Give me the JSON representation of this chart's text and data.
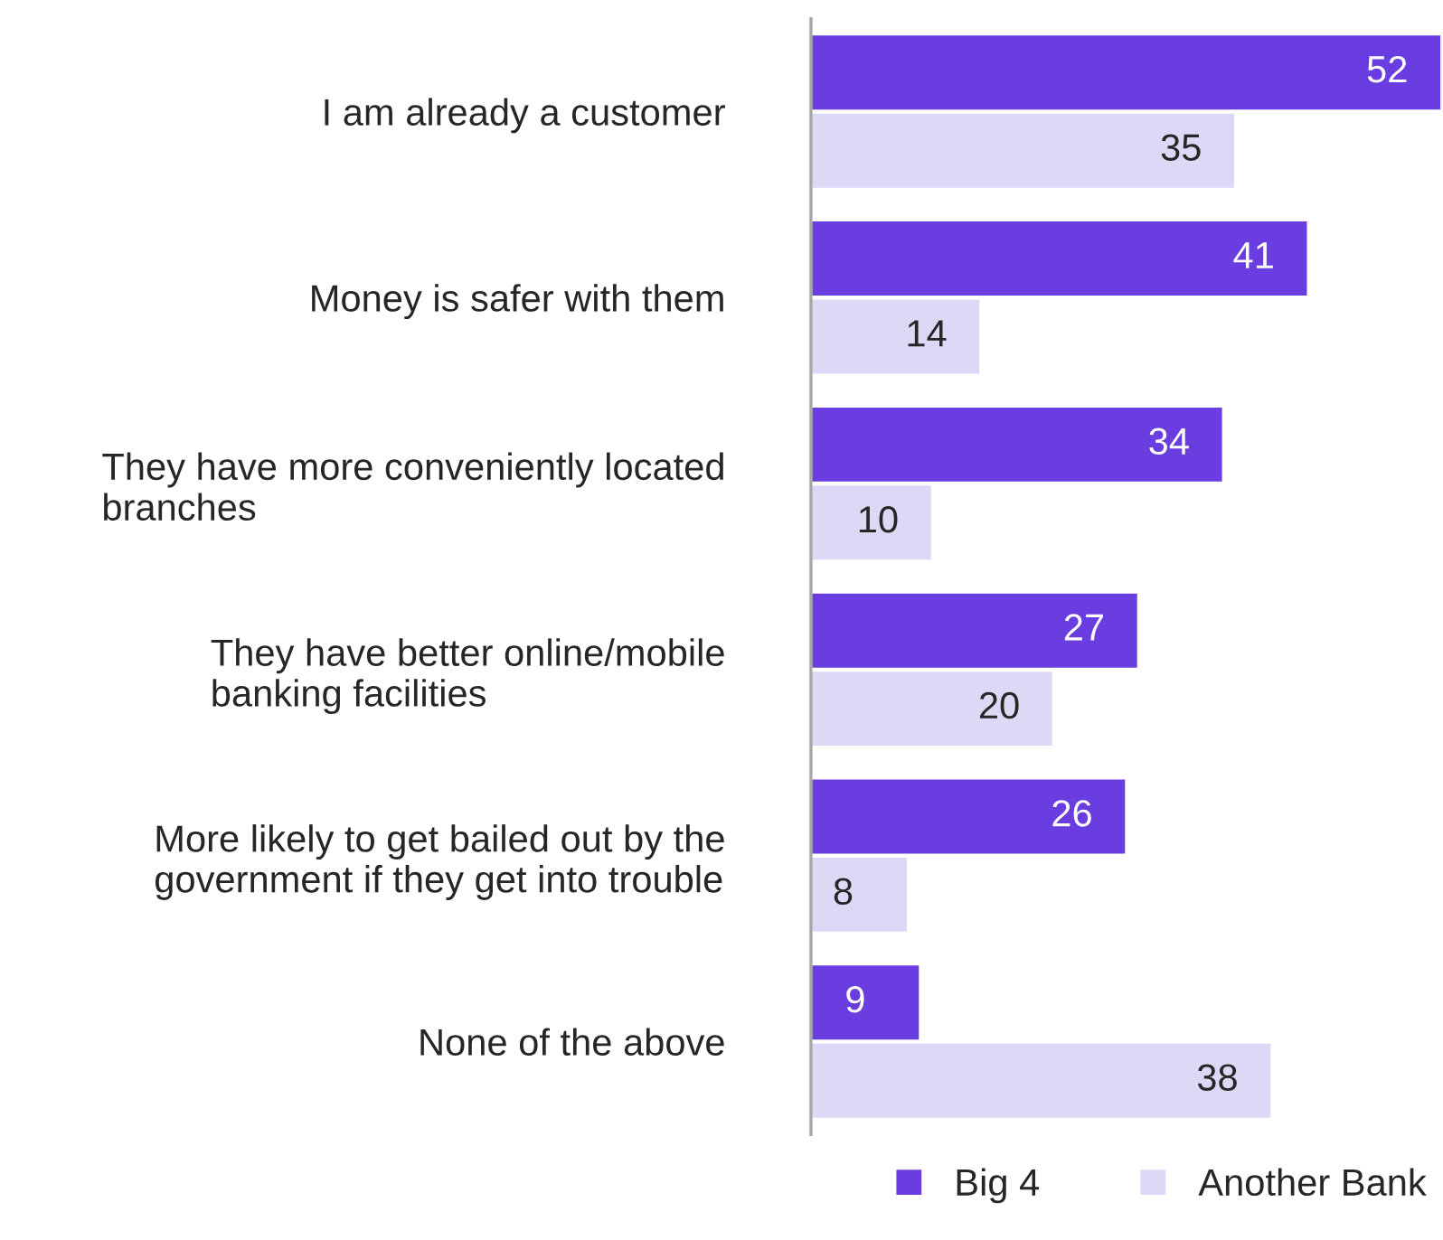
{
  "chart_data": {
    "type": "bar",
    "orientation": "horizontal",
    "categories": [
      "I am already a customer",
      "Money is safer with them",
      "They have more conveniently located\nbranches",
      "They have better online/mobile\nbanking facilities",
      "More likely to get bailed out by the\ngovernment if they get into trouble",
      "None of the above"
    ],
    "series": [
      {
        "name": "Big 4",
        "color": "#6a3de0",
        "values": [
          52,
          41,
          34,
          27,
          26,
          9
        ]
      },
      {
        "name": "Another Bank",
        "color": "#ddd8f6",
        "values": [
          35,
          14,
          10,
          20,
          8,
          38
        ]
      }
    ],
    "xlim": [
      0,
      52
    ],
    "data_labels": true,
    "tick_labels": "y",
    "grid": false,
    "legend": "bottom right"
  }
}
